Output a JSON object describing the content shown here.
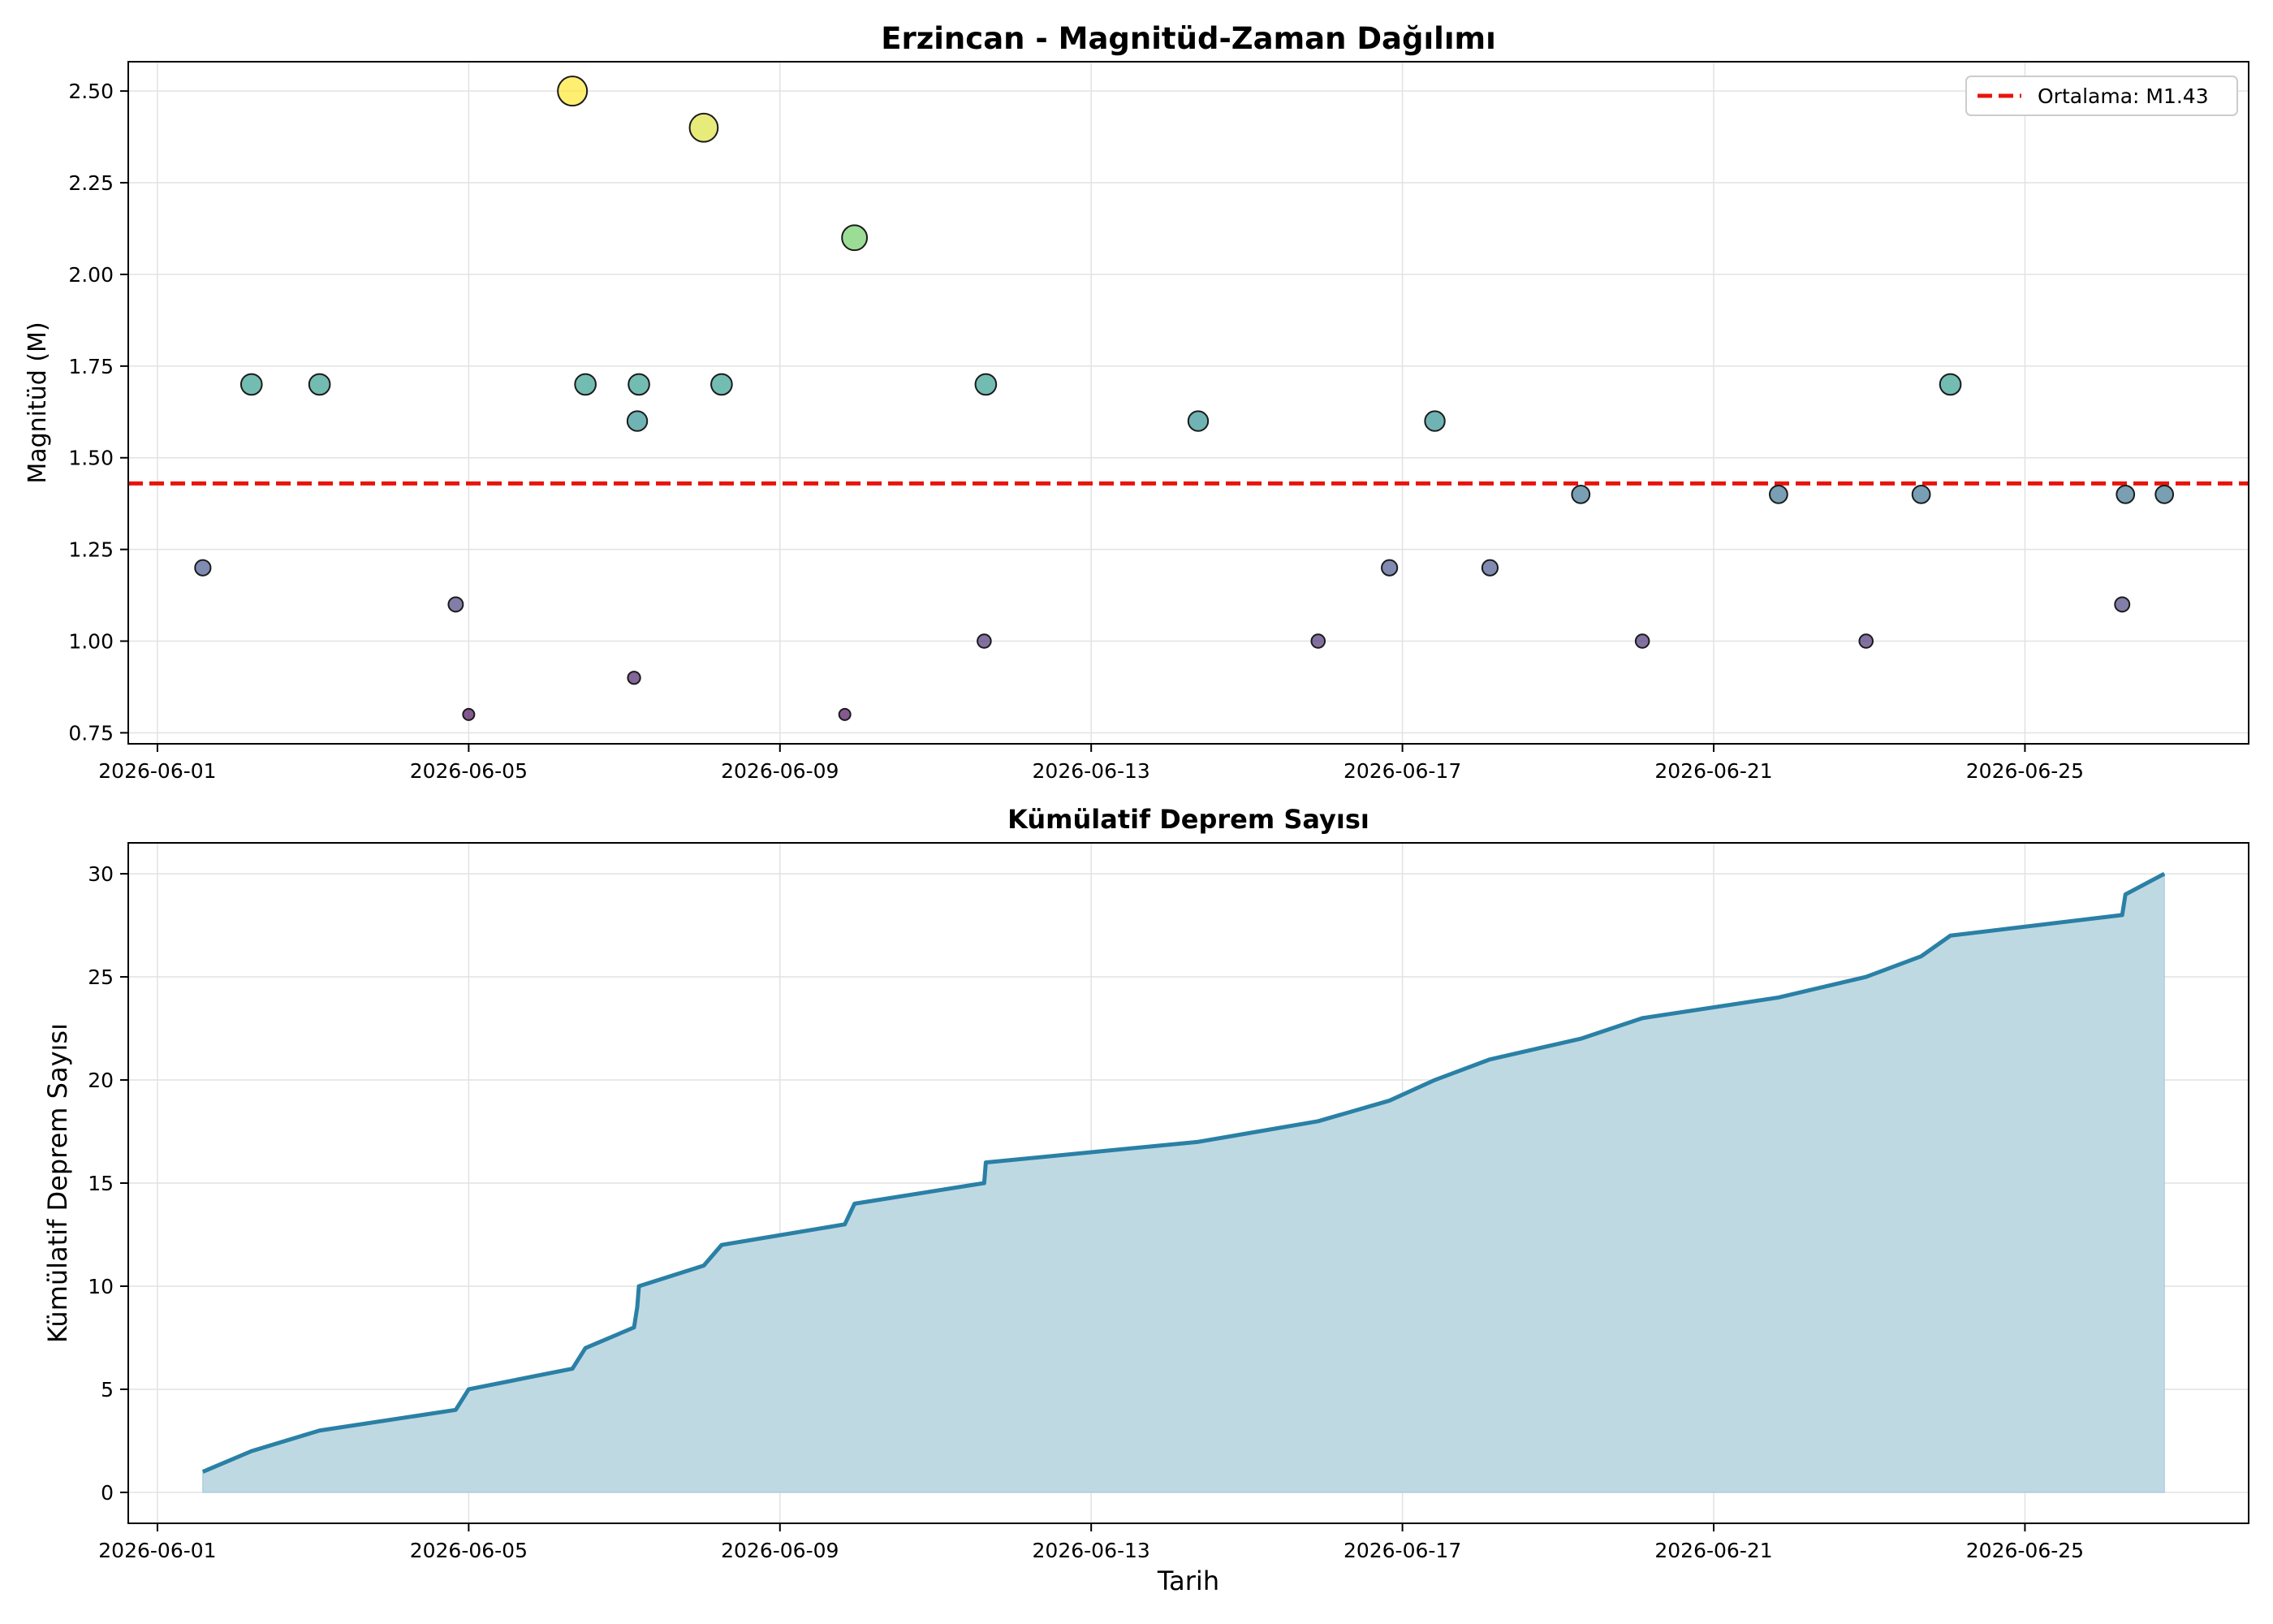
{
  "colors": {
    "mean_line": "#e8140c",
    "cum_line": "#2a80a5",
    "cum_fill": "#bfd9e3",
    "grid": "#e2e2e2",
    "axes": "#000000",
    "viridis": [
      "#440154",
      "#3b528b",
      "#21918c",
      "#5ec962",
      "#fde725"
    ]
  },
  "chart_data": [
    {
      "type": "scatter",
      "title": "Erzincan - Magnitüd-Zaman Dağılımı",
      "xlabel": "",
      "ylabel": "Magnitüd (M)",
      "xlim": [
        "2026-05-31T15:00",
        "2026-06-27T21:00"
      ],
      "ylim": [
        0.72,
        2.58
      ],
      "xticks": [
        "2026-06-01",
        "2026-06-05",
        "2026-06-09",
        "2026-06-13",
        "2026-06-17",
        "2026-06-21",
        "2026-06-25"
      ],
      "yticks": [
        "0.75",
        "1.00",
        "1.25",
        "1.50",
        "1.75",
        "2.00",
        "2.25",
        "2.50"
      ],
      "grid": true,
      "legend": {
        "position": "top-right",
        "entries": [
          "Ortalama: M1.43"
        ]
      },
      "mean_line": 1.43,
      "size_and_color_encode": "magnitude",
      "points": [
        {
          "x": "2026-06-01T14:00",
          "y": 1.2
        },
        {
          "x": "2026-06-02T05:00",
          "y": 1.7
        },
        {
          "x": "2026-06-03T02:00",
          "y": 1.7
        },
        {
          "x": "2026-06-04T20:00",
          "y": 1.1
        },
        {
          "x": "2026-06-05T00:00",
          "y": 0.8
        },
        {
          "x": "2026-06-06T08:00",
          "y": 2.5
        },
        {
          "x": "2026-06-06T12:00",
          "y": 1.7
        },
        {
          "x": "2026-06-07T03:00",
          "y": 0.9
        },
        {
          "x": "2026-06-07T04:00",
          "y": 1.6
        },
        {
          "x": "2026-06-07T04:30",
          "y": 1.7
        },
        {
          "x": "2026-06-08T00:30",
          "y": 2.4
        },
        {
          "x": "2026-06-08T06:00",
          "y": 1.7
        },
        {
          "x": "2026-06-09T20:00",
          "y": 0.8
        },
        {
          "x": "2026-06-09T23:00",
          "y": 2.1
        },
        {
          "x": "2026-06-11T15:00",
          "y": 1.0
        },
        {
          "x": "2026-06-11T15:30",
          "y": 1.7
        },
        {
          "x": "2026-06-14T09:00",
          "y": 1.6
        },
        {
          "x": "2026-06-15T22:00",
          "y": 1.0
        },
        {
          "x": "2026-06-16T20:00",
          "y": 1.2
        },
        {
          "x": "2026-06-17T10:00",
          "y": 1.6
        },
        {
          "x": "2026-06-18T03:00",
          "y": 1.2
        },
        {
          "x": "2026-06-19T07:00",
          "y": 1.4
        },
        {
          "x": "2026-06-20T02:00",
          "y": 1.0
        },
        {
          "x": "2026-06-21T20:00",
          "y": 1.4
        },
        {
          "x": "2026-06-22T23:00",
          "y": 1.0
        },
        {
          "x": "2026-06-23T16:00",
          "y": 1.4
        },
        {
          "x": "2026-06-24T01:00",
          "y": 1.7
        },
        {
          "x": "2026-06-26T06:00",
          "y": 1.1
        },
        {
          "x": "2026-06-26T07:00",
          "y": 1.4
        },
        {
          "x": "2026-06-26T19:00",
          "y": 1.4
        }
      ]
    },
    {
      "type": "area",
      "title": "Kümülatif Deprem Sayısı",
      "xlabel": "Tarih",
      "ylabel": "Kümülatif Deprem Sayısı",
      "xlim": [
        "2026-05-31T15:00",
        "2026-06-27T21:00"
      ],
      "ylim": [
        -1.5,
        31.5
      ],
      "xticks": [
        "2026-06-01",
        "2026-06-05",
        "2026-06-09",
        "2026-06-13",
        "2026-06-17",
        "2026-06-21",
        "2026-06-25"
      ],
      "yticks": [
        "0",
        "5",
        "10",
        "15",
        "20",
        "25",
        "30"
      ],
      "grid": true,
      "y_from_points_of_first_chart": "cumulative count (1..30)"
    }
  ]
}
